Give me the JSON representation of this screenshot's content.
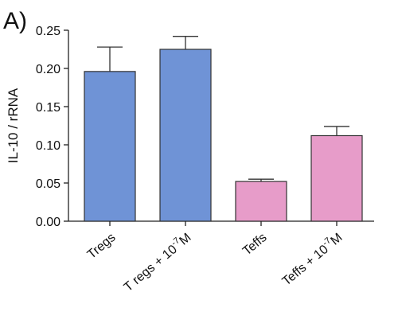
{
  "panel_label": "A)",
  "chart_data": {
    "type": "bar",
    "ylabel": "IL-10 / rRNA",
    "xlabel": "",
    "ylim": [
      0,
      0.25
    ],
    "yticks": [
      "0.00",
      "0.05",
      "0.10",
      "0.15",
      "0.20",
      "0.25"
    ],
    "grid": false,
    "categories": [
      {
        "base": "Tregs",
        "sup": "",
        "tail": ""
      },
      {
        "base": "T regs + 10",
        "sup": "-7",
        "tail": "M"
      },
      {
        "base": "Teffs",
        "sup": "",
        "tail": ""
      },
      {
        "base": "Teffs + 10",
        "sup": "-7",
        "tail": "M"
      }
    ],
    "values": [
      0.196,
      0.225,
      0.052,
      0.112
    ],
    "errors": [
      0.032,
      0.017,
      0.003,
      0.012
    ],
    "colors": [
      "#6f93d6",
      "#6f93d6",
      "#e79cc9",
      "#e79cc9"
    ]
  }
}
